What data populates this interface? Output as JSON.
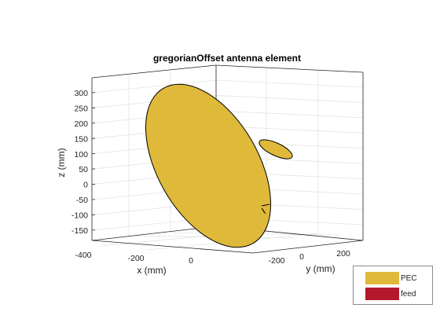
{
  "chart_data": {
    "type": "3d-surface",
    "title": "gregorianOffset antenna element",
    "xlabel": "x (mm)",
    "ylabel": "y (mm)",
    "zlabel": "z (mm)",
    "x_ticks": [
      "-400",
      "-200",
      "0"
    ],
    "y_ticks": [
      "-200",
      "0",
      "200"
    ],
    "z_ticks": [
      "300",
      "250",
      "200",
      "150",
      "100",
      "50",
      "0",
      "-50",
      "-100",
      "-150"
    ],
    "grid": true,
    "legend_position": "bottom-right",
    "series": [
      {
        "name": "PEC",
        "color": "#DFB93A"
      },
      {
        "name": "feed",
        "color": "#B5182D"
      }
    ]
  }
}
